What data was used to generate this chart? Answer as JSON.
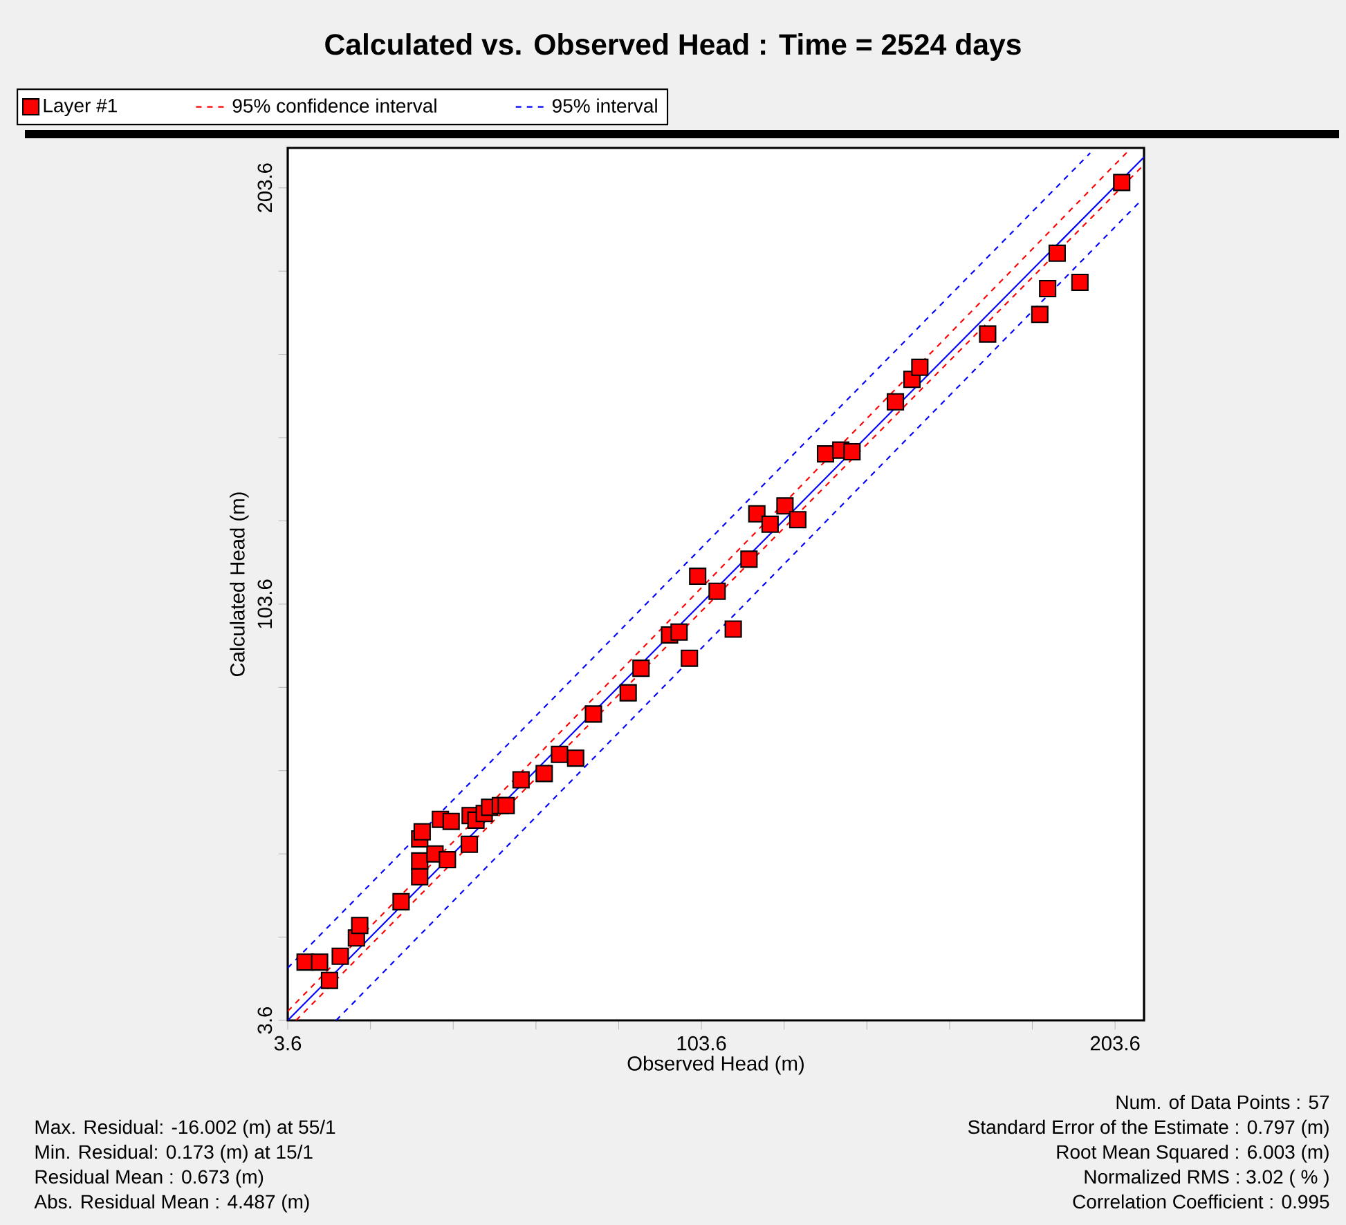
{
  "chart_data": {
    "type": "scatter",
    "title": "Calculated vs. Observed Head : Time = 2524 days",
    "xlabel": "Observed Head (m)",
    "ylabel": "Calculated Head (m)",
    "xlim": [
      3.6,
      210.6
    ],
    "ylim": [
      3.6,
      213.2
    ],
    "xticks": [
      3.6,
      {
        "value": 23.6,
        "label": null
      },
      {
        "value": 43.6,
        "label": null
      },
      {
        "value": 63.6,
        "label": null
      },
      {
        "value": 83.6,
        "label": null
      },
      103.6,
      {
        "value": 123.6,
        "label": null
      },
      {
        "value": 143.6,
        "label": null
      },
      {
        "value": 163.6,
        "label": null
      },
      {
        "value": 183.6,
        "label": null
      },
      203.6
    ],
    "yticks": [
      3.6,
      {
        "value": 23.6,
        "label": null
      },
      {
        "value": 43.6,
        "label": null
      },
      {
        "value": 63.6,
        "label": null
      },
      {
        "value": 83.6,
        "label": null
      },
      103.6,
      {
        "value": 123.6,
        "label": null
      },
      {
        "value": 143.6,
        "label": null
      },
      {
        "value": 163.6,
        "label": null
      },
      {
        "value": 183.6,
        "label": null
      },
      203.6
    ],
    "legend": "top",
    "series": [
      {
        "type": "line",
        "marker": "none",
        "color": "#0000ff",
        "line_style": "solid",
        "x": [
          3.6,
          210.6
        ],
        "values": [
          3.6,
          211.0
        ]
      },
      {
        "type": "line",
        "marker": "none",
        "name": "95% interval",
        "color": "#0000ff",
        "line_style": "dashed",
        "x": [
          3.6,
          197.6
        ],
        "values": [
          16.2,
          212.0
        ]
      },
      {
        "type": "line",
        "marker": "none",
        "color": "#0000ff",
        "line_style": "dashed",
        "x": [
          15.3,
          209.9
        ],
        "values": [
          3.6,
          200.6
        ]
      },
      {
        "type": "line",
        "marker": "none",
        "name": "95% confidence interval",
        "color": "#ff0000",
        "line_style": "dashed",
        "x": [
          3.6,
          207.3
        ],
        "values": [
          5.8,
          213.0
        ]
      },
      {
        "type": "line",
        "marker": "none",
        "color": "#ff0000",
        "line_style": "dashed",
        "x": [
          5.6,
          210.6
        ],
        "values": [
          3.6,
          209.2
        ]
      },
      {
        "name": "Layer #1",
        "marker": "square",
        "color": "#ff0000",
        "x": [
          7.8,
          11.3,
          13.7,
          16.3,
          20.2,
          21.0,
          31.0,
          35.5,
          35.5,
          39.2,
          42.2,
          35.5,
          36.1,
          40.5,
          43.1,
          47.5,
          47.7,
          49.1,
          51.1,
          52.4,
          55.0,
          56.4,
          60.0,
          65.6,
          69.3,
          73.2,
          77.5,
          85.9,
          89.0,
          100.7,
          95.9,
          98.2,
          111.3,
          107.4,
          102.7,
          115.1,
          117.0,
          120.2,
          123.8,
          126.9,
          133.6,
          137.3,
          140.0,
          150.5,
          154.5,
          156.4,
          172.8,
          185.4,
          187.3,
          189.6,
          195.1,
          205.2
        ],
        "values": [
          17.6,
          17.6,
          13.2,
          19.0,
          23.4,
          26.4,
          32.1,
          38.1,
          41.9,
          43.6,
          42.2,
          47.2,
          48.9,
          51.9,
          51.4,
          45.9,
          52.8,
          51.7,
          53.3,
          54.8,
          55.2,
          55.2,
          61.4,
          62.9,
          67.5,
          66.6,
          77.2,
          82.3,
          88.2,
          90.6,
          96.2,
          96.9,
          97.6,
          106.7,
          110.3,
          114.4,
          125.3,
          122.8,
          127.2,
          123.9,
          139.7,
          140.6,
          140.2,
          152.2,
          157.6,
          160.5,
          168.5,
          173.2,
          179.4,
          187.9,
          180.9,
          204.9
        ]
      }
    ],
    "annotations": [
      "Max. Residual: -16.002 (m) at 55/1",
      "Min. Residual: 0.173 (m) at 15/1",
      "Residual Mean : 0.673 (m)",
      "Abs. Residual Mean : 4.487 (m)",
      "Num. of Data Points : 57",
      "Standard Error of the Estimate : 0.797 (m)",
      "Root Mean Squared : 6.003 (m)",
      "Normalized RMS : 3.02 ( % )",
      "Correlation Coefficient : 0.995"
    ]
  }
}
